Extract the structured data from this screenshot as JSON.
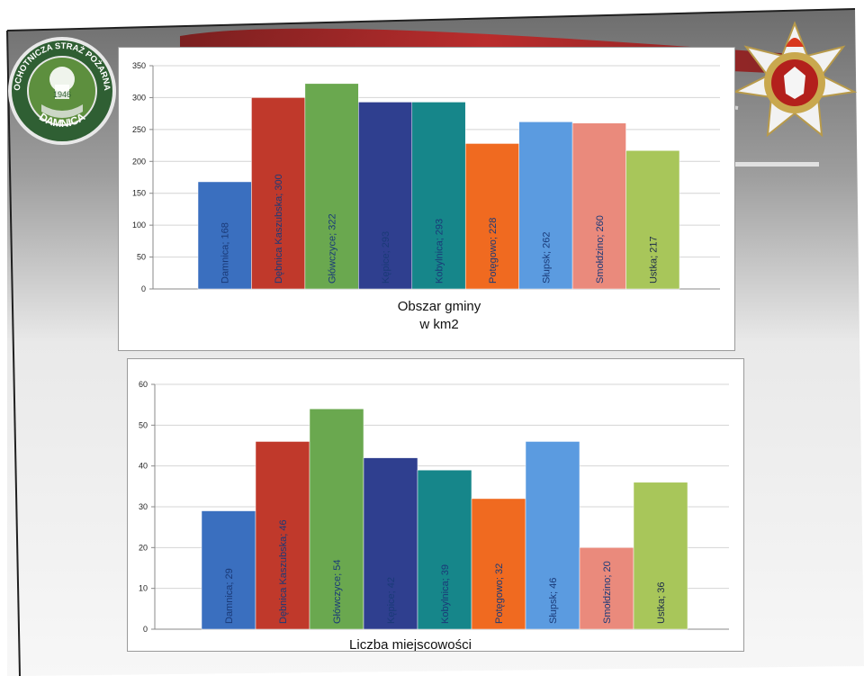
{
  "slide": {
    "left_logo_text": [
      "OCHOTNICZA STRAŻ POŻARNA",
      "DAMNICA",
      "1946"
    ],
    "right_emblem": "psp-cross-emblem-icon"
  },
  "chart_data": [
    {
      "type": "bar",
      "title": [
        "Obszar gminy",
        "w km2"
      ],
      "categories": [
        "Damnica",
        "Dębnica Kaszubska",
        "Główczyce",
        "Kępice",
        "Kobylnica",
        "Potęgowo",
        "Słupsk",
        "Smołdzino",
        "Ustka"
      ],
      "values": [
        168,
        300,
        322,
        293,
        293,
        228,
        262,
        260,
        217
      ],
      "ylim": [
        0,
        350
      ],
      "yticks": [
        0,
        50,
        100,
        150,
        200,
        250,
        300,
        350
      ],
      "grid": true,
      "data_labels": [
        "Damnica; 168",
        "Dębnica Kaszubska; 300",
        "Główczyce; 322",
        "Kępice; 293",
        "Kobylnica; 293",
        "Potęgowo; 228",
        "Słupsk; 262",
        "Smołdzino; 260",
        "Ustka; 217"
      ],
      "colors": [
        "#3a6fbf",
        "#c0392b",
        "#6aa84f",
        "#2f3f8f",
        "#16868a",
        "#f06a20",
        "#5b9be0",
        "#ea8a7c",
        "#a8c65a"
      ]
    },
    {
      "type": "bar",
      "title": [
        "Liczba miejscowości"
      ],
      "categories": [
        "Damnica",
        "Dębnica Kaszubska",
        "Główczyce",
        "Kępice",
        "Kobylnica",
        "Potęgowo",
        "Słupsk",
        "Smołdzino",
        "Ustka"
      ],
      "values": [
        29,
        46,
        54,
        42,
        39,
        32,
        46,
        20,
        36
      ],
      "ylim": [
        0,
        60
      ],
      "yticks": [
        0,
        10,
        20,
        30,
        40,
        50,
        60
      ],
      "grid": true,
      "data_labels": [
        "Damnica; 29",
        "Dębnica Kaszubska; 46",
        "Główczyce; 54",
        "Kępice; 42",
        "Kobylnica; 39",
        "Potęgowo; 32",
        "Słupsk; 46",
        "Smołdzino; 20",
        "Ustka; 36"
      ],
      "colors": [
        "#3a6fbf",
        "#c0392b",
        "#6aa84f",
        "#2f3f8f",
        "#16868a",
        "#f06a20",
        "#5b9be0",
        "#ea8a7c",
        "#a8c65a"
      ]
    }
  ]
}
